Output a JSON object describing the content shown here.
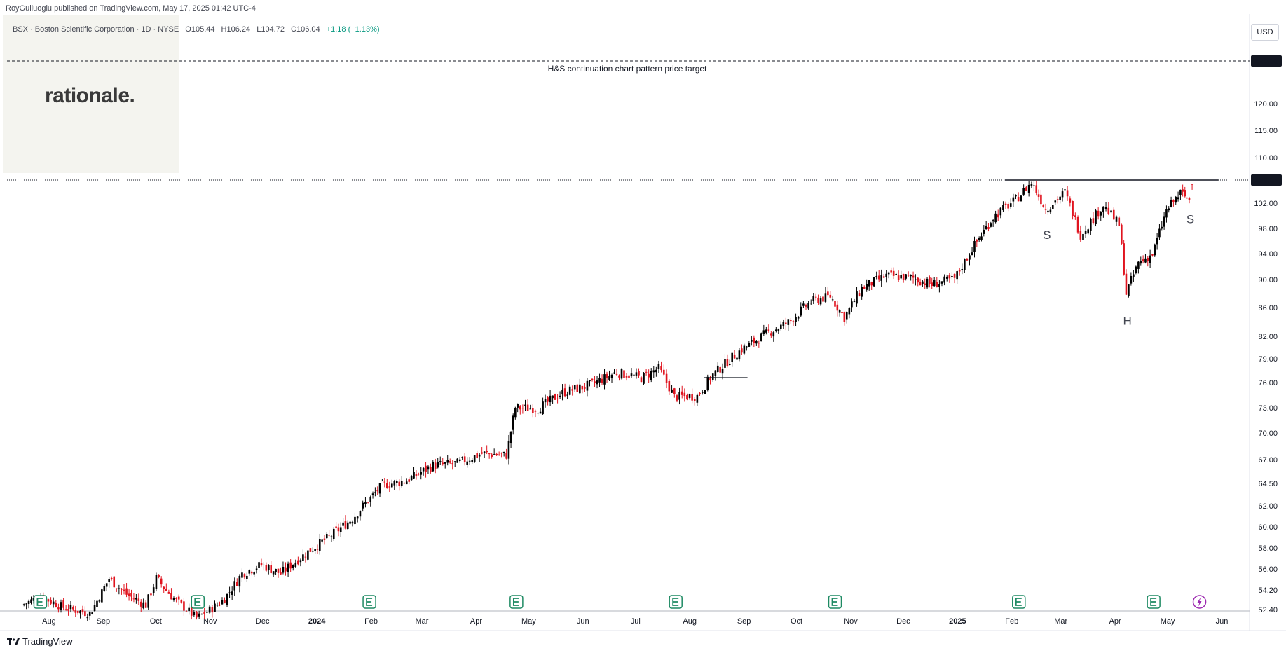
{
  "header": {
    "published": "RoyGulluoglu published on TradingView.com, May 17, 2025 01:42 UTC-4",
    "symbol": "BSX · Boston Scientific Corporation · 1D · NYSE",
    "open": "O105.44",
    "high": "H106.24",
    "low": "L104.72",
    "close": "C106.04",
    "change": "+1.18 (+1.13%)"
  },
  "logo": {
    "text": "rationale."
  },
  "currency": "USD",
  "footer": {
    "brand": "TradingView"
  },
  "colors": {
    "up": "#000000",
    "down": "#e0141f",
    "accent": "#131722",
    "earnings": "#1e8a63"
  },
  "icons": [
    "earnings-icon",
    "lightning-icon",
    "tradingview-logo-icon"
  ],
  "chart_data": {
    "type": "candlestick",
    "title": "",
    "ylabel": "",
    "xlabel": "",
    "y_axis_ticks": [
      52.4,
      54.2,
      56.0,
      58.0,
      60.0,
      62.0,
      64.5,
      67.0,
      70.0,
      73.0,
      76.0,
      79.0,
      82.0,
      86.0,
      90.0,
      94.0,
      98.0,
      102.0,
      110.0,
      115.0,
      120.0
    ],
    "x_axis_ticks": [
      "Aug",
      "Sep",
      "Oct",
      "Nov",
      "Dec",
      "2024",
      "Feb",
      "Mar",
      "Apr",
      "May",
      "Jun",
      "Jul",
      "Aug",
      "Sep",
      "Oct",
      "Nov",
      "Dec",
      "2025",
      "Feb",
      "Mar",
      "Apr",
      "May",
      "Jun"
    ],
    "x_axis_bold_ticks": [
      "2024",
      "2025"
    ],
    "last_price": 106.04,
    "target_price": 129.0,
    "target_label": "H&S continuation chart pattern price target",
    "neckline": 106.04,
    "pattern_labels": [
      {
        "text": "S",
        "date": "2025-02-21",
        "price": 97.0
      },
      {
        "text": "H",
        "date": "2025-04-08",
        "price": 84.2
      },
      {
        "text": "S",
        "date": "2025-05-14",
        "price": 99.5
      }
    ],
    "earnings_markers": [
      {
        "date": "2023-07-27"
      },
      {
        "date": "2023-10-25"
      },
      {
        "date": "2024-01-31"
      },
      {
        "date": "2024-04-24"
      },
      {
        "date": "2024-07-24"
      },
      {
        "date": "2024-10-23"
      },
      {
        "date": "2025-02-05"
      },
      {
        "date": "2025-04-23"
      }
    ],
    "price_path": [
      [
        "2023-07-17",
        52.8
      ],
      [
        "2023-07-28",
        53.6
      ],
      [
        "2023-08-10",
        52.6
      ],
      [
        "2023-08-25",
        52.0
      ],
      [
        "2023-09-05",
        55.2
      ],
      [
        "2023-09-15",
        53.8
      ],
      [
        "2023-09-26",
        52.8
      ],
      [
        "2023-10-02",
        55.2
      ],
      [
        "2023-10-12",
        53.4
      ],
      [
        "2023-10-25",
        51.6
      ],
      [
        "2023-11-03",
        52.5
      ],
      [
        "2023-11-10",
        53.4
      ],
      [
        "2023-11-20",
        55.6
      ],
      [
        "2023-12-01",
        56.4
      ],
      [
        "2023-12-12",
        55.6
      ],
      [
        "2023-12-22",
        56.9
      ],
      [
        "2023-12-29",
        57.8
      ],
      [
        "2024-01-10",
        59.2
      ],
      [
        "2024-01-22",
        60.8
      ],
      [
        "2024-01-31",
        62.6
      ],
      [
        "2024-02-08",
        64.3
      ],
      [
        "2024-02-22",
        64.8
      ],
      [
        "2024-03-08",
        66.4
      ],
      [
        "2024-03-22",
        66.6
      ],
      [
        "2024-04-05",
        67.7
      ],
      [
        "2024-04-19",
        67.5
      ],
      [
        "2024-04-24",
        73.0
      ],
      [
        "2024-05-07",
        72.9
      ],
      [
        "2024-05-21",
        74.8
      ],
      [
        "2024-06-07",
        75.8
      ],
      [
        "2024-06-21",
        77.3
      ],
      [
        "2024-07-05",
        76.6
      ],
      [
        "2024-07-15",
        77.8
      ],
      [
        "2024-07-24",
        74.3
      ],
      [
        "2024-08-06",
        74.4
      ],
      [
        "2024-08-15",
        77.0
      ],
      [
        "2024-08-30",
        80.0
      ],
      [
        "2024-09-13",
        82.2
      ],
      [
        "2024-09-27",
        83.9
      ],
      [
        "2024-10-10",
        86.9
      ],
      [
        "2024-10-21",
        87.6
      ],
      [
        "2024-10-29",
        84.6
      ],
      [
        "2024-11-08",
        88.8
      ],
      [
        "2024-11-22",
        90.6
      ],
      [
        "2024-12-06",
        90.3
      ],
      [
        "2024-12-18",
        89.3
      ],
      [
        "2024-12-31",
        90.1
      ],
      [
        "2025-01-10",
        94.8
      ],
      [
        "2025-01-22",
        99.8
      ],
      [
        "2025-02-04",
        102.6
      ],
      [
        "2025-02-13",
        105.6
      ],
      [
        "2025-02-21",
        101.0
      ],
      [
        "2025-03-04",
        103.9
      ],
      [
        "2025-03-13",
        97.0
      ],
      [
        "2025-03-26",
        101.7
      ],
      [
        "2025-04-04",
        98.5
      ],
      [
        "2025-04-08",
        88.0
      ],
      [
        "2025-04-15",
        92.6
      ],
      [
        "2025-04-23",
        93.9
      ],
      [
        "2025-05-01",
        100.8
      ],
      [
        "2025-05-09",
        103.8
      ],
      [
        "2025-05-14",
        102.6
      ],
      [
        "2025-05-16",
        106.04
      ]
    ]
  }
}
